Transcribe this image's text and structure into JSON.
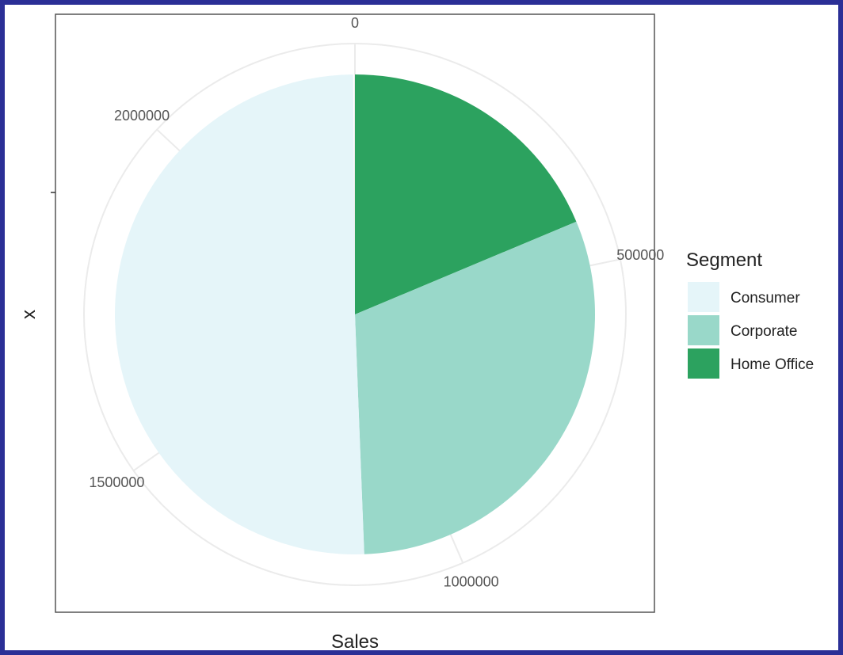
{
  "chart_data": {
    "type": "pie",
    "coord": "polar",
    "xlabel": "Sales",
    "ylabel": "x",
    "theta_range": [
      0,
      2300000
    ],
    "theta_ticks": [
      "0",
      "500000",
      "1000000",
      "1500000",
      "2000000"
    ],
    "theta_tick_values": [
      0,
      500000,
      1000000,
      1500000,
      2000000
    ],
    "grid": true,
    "legend": {
      "title": "Segment",
      "position": "right"
    },
    "series": [
      {
        "name": "Home Office",
        "value": 429653,
        "color": "#2ca25f"
      },
      {
        "name": "Corporate",
        "value": 706146,
        "color": "#99d8c9"
      },
      {
        "name": "Consumer",
        "value": 1161401,
        "color": "#e5f5f9"
      }
    ],
    "legend_order": [
      "Consumer",
      "Corporate",
      "Home Office"
    ]
  }
}
